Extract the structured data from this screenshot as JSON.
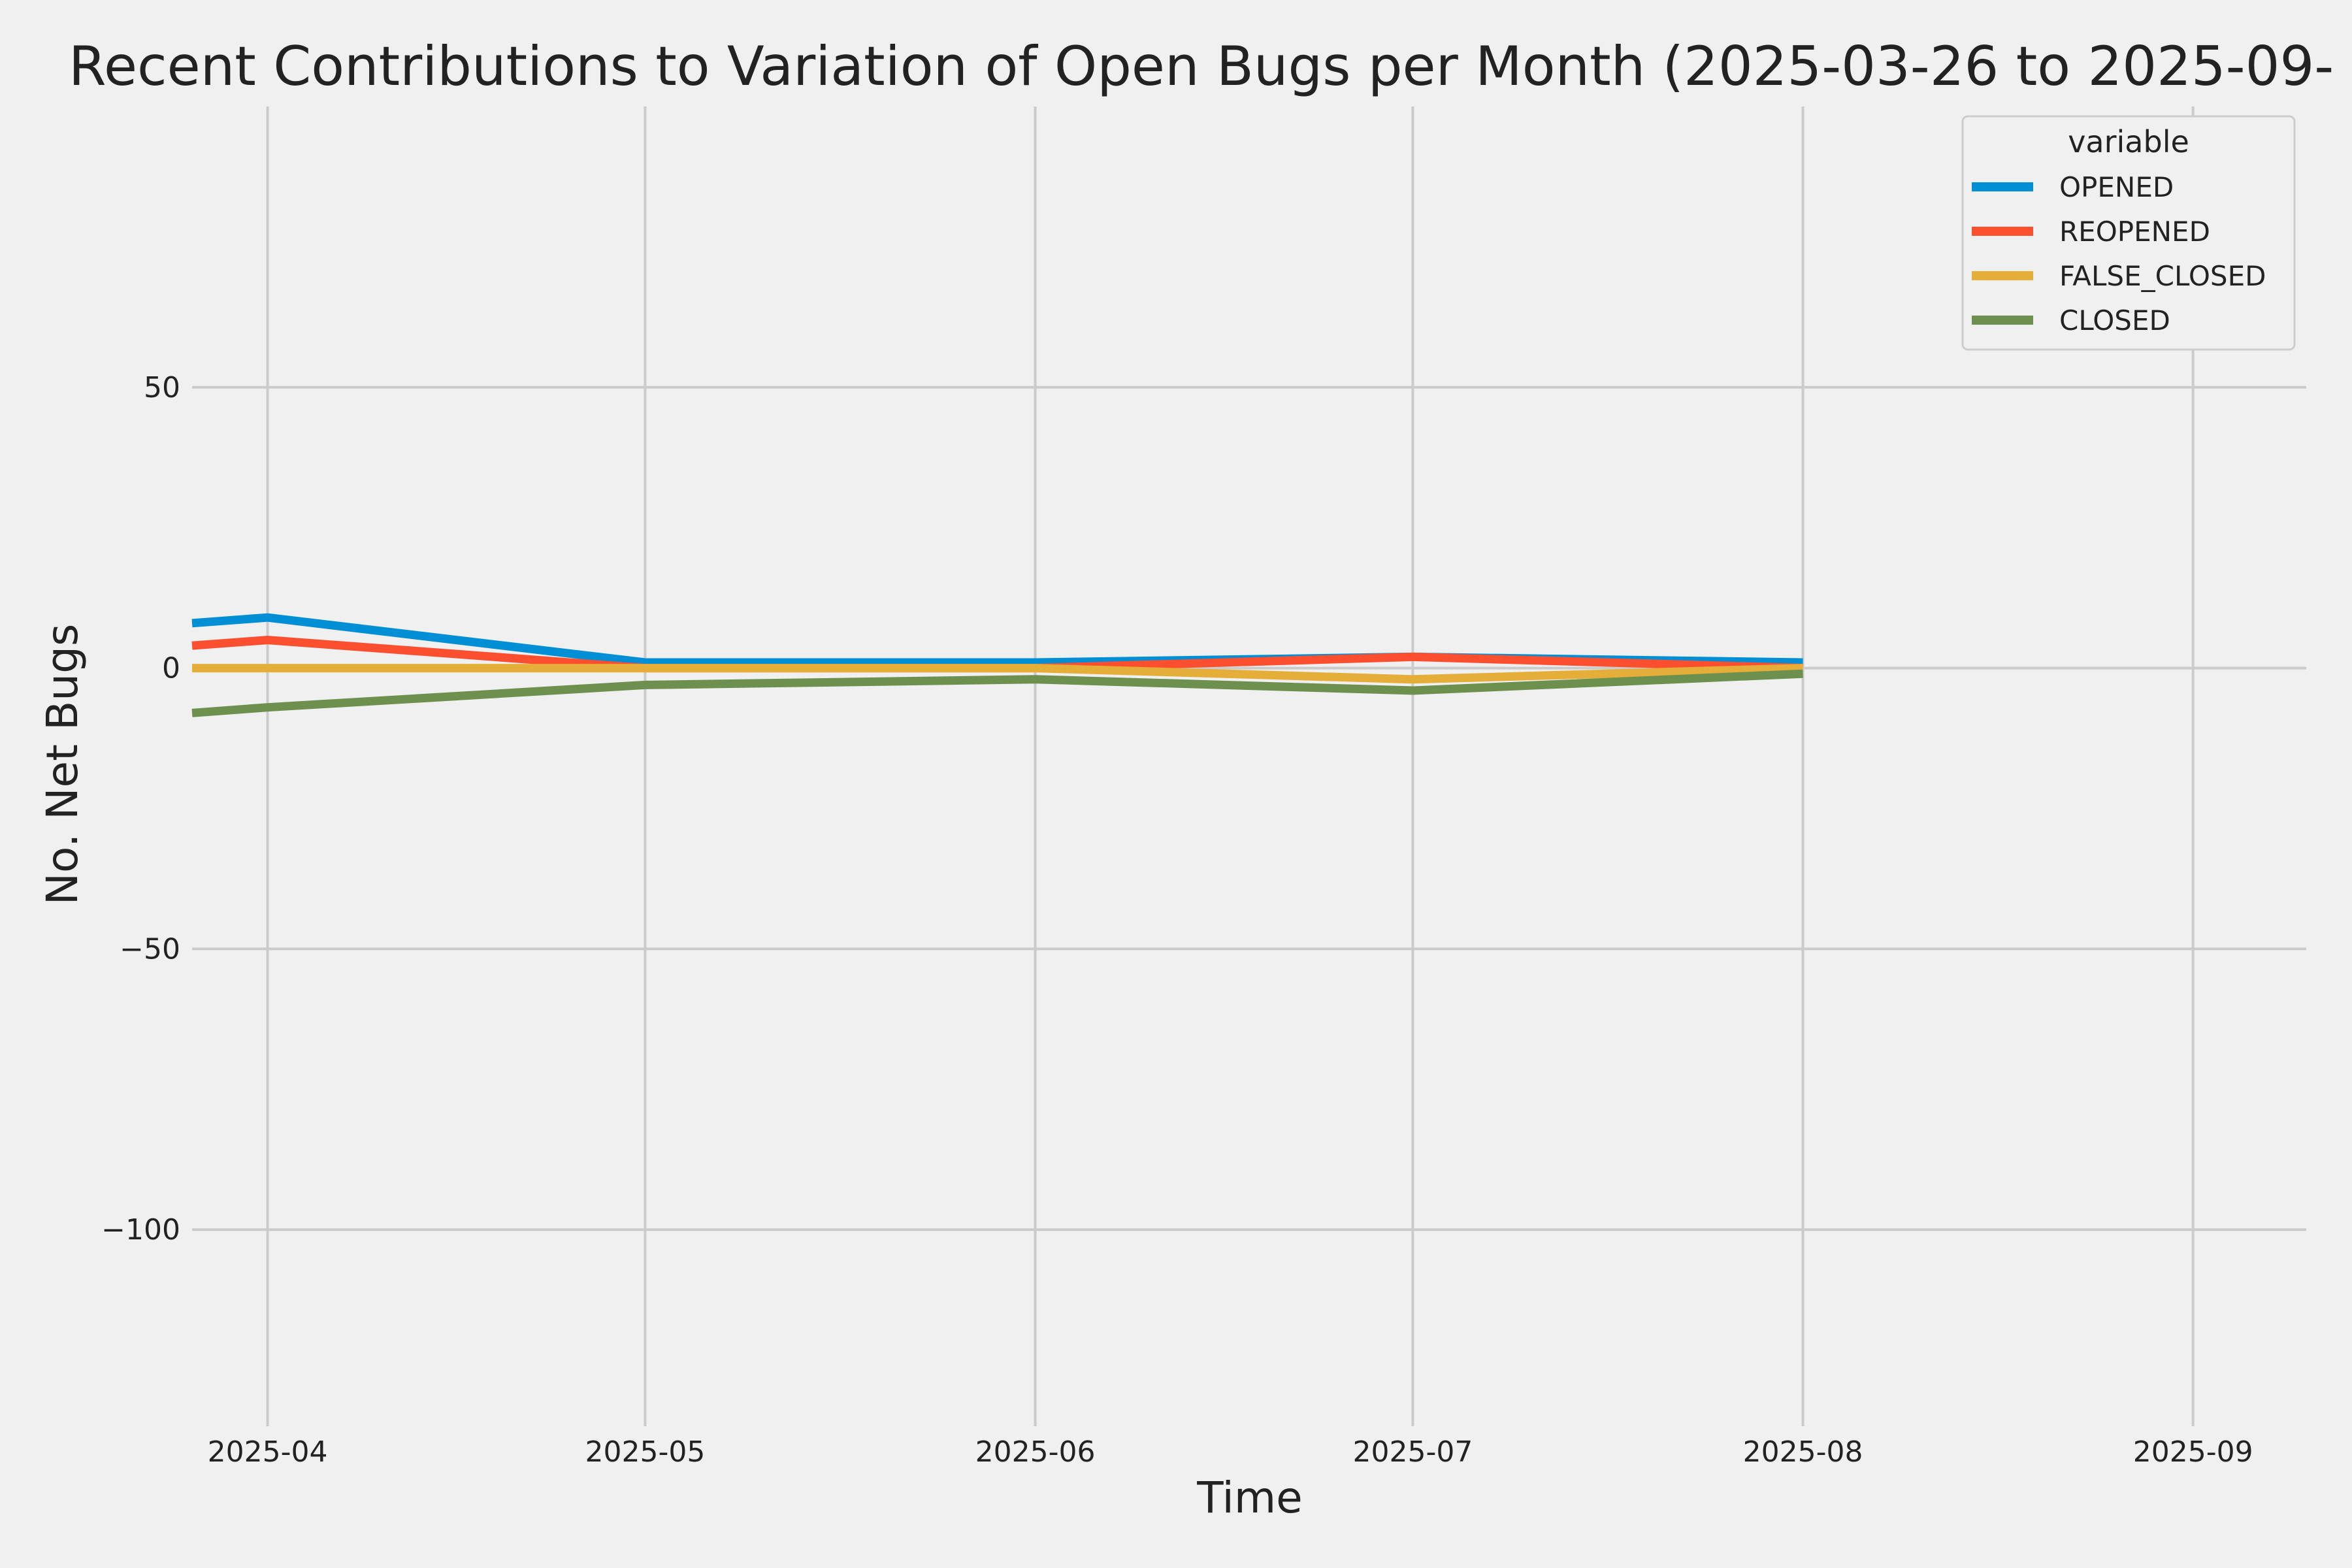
{
  "chart_data": {
    "type": "line",
    "title": "Recent Contributions to Variation of Open Bugs per Month (2025-03-26 to 2025-09-",
    "xlabel": "Time",
    "ylabel": "No. Net Bugs",
    "x_ticks": [
      "2025-04",
      "2025-05",
      "2025-06",
      "2025-07",
      "2025-08",
      "2025-09"
    ],
    "y_ticks": [
      50,
      0,
      -50,
      -100
    ],
    "y_tick_labels": [
      "50",
      "0",
      "−50",
      "−100"
    ],
    "xlim": [
      "2025-03-26",
      "2025-09-10"
    ],
    "ylim": [
      -135,
      100
    ],
    "grid": true,
    "legend": {
      "title": "variable",
      "placement": "top-right"
    },
    "x": [
      "2025-03-26",
      "2025-04-01",
      "2025-05-01",
      "2025-06-01",
      "2025-07-01",
      "2025-08-01"
    ],
    "series": [
      {
        "name": "OPENED",
        "color": "#008fd5",
        "values": [
          8,
          9,
          1,
          1,
          2,
          1
        ]
      },
      {
        "name": "REOPENED",
        "color": "#fc4f30",
        "values": [
          4,
          5,
          0,
          0,
          2,
          0
        ]
      },
      {
        "name": "FALSE_CLOSED",
        "color": "#e5ae38",
        "values": [
          0,
          0,
          0,
          0,
          -2,
          0
        ]
      },
      {
        "name": "CLOSED",
        "color": "#6d904f",
        "values": [
          -8,
          -7,
          -3,
          -2,
          -4,
          -1
        ]
      }
    ]
  }
}
